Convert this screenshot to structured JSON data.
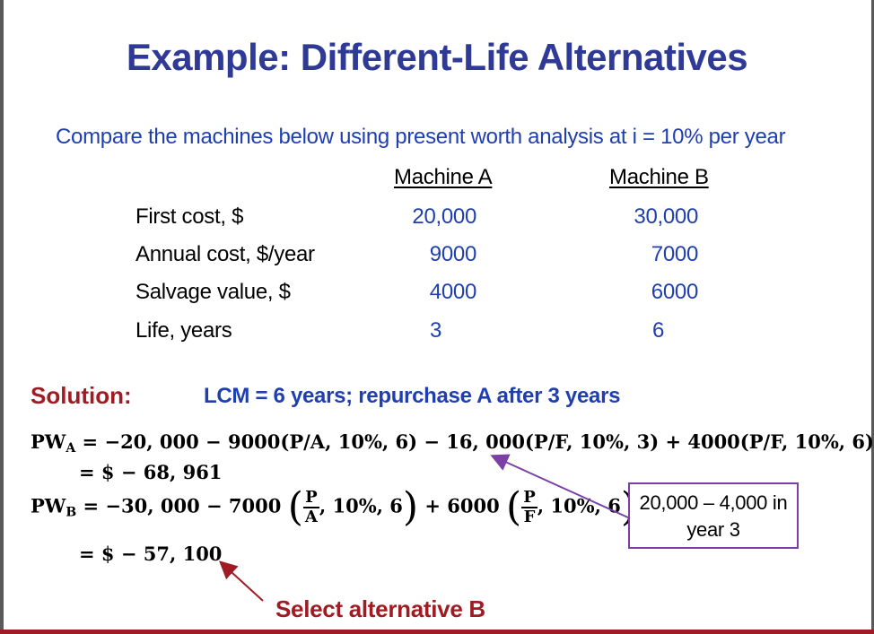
{
  "title": "Example: Different-Life Alternatives",
  "subtitle": "Compare the machines below using present worth analysis at i = 10% per year",
  "table": {
    "columns": [
      "Machine A",
      "Machine B"
    ],
    "rows": [
      {
        "label": "First cost, $",
        "a": "20,000",
        "b": "30,000"
      },
      {
        "label": "Annual cost, $/year",
        "a": "9000",
        "b": "7000"
      },
      {
        "label": "Salvage value, $",
        "a": "4000",
        "b": "6000"
      },
      {
        "label": "Life, years",
        "a": "3",
        "b": "6"
      }
    ]
  },
  "solution": {
    "label": "Solution:",
    "text": "LCM = 6 years; repurchase A after 3 years"
  },
  "equations": {
    "pwa_line1_prefix": "PW",
    "pwa_sub": "A",
    "pwa_line1_rest": " = −20, 000 − 9000(P/A, 10%, 6) − 16, 000(P/F, 10%, 3) + 4000(P/F, 10%, 6)",
    "pwa_line2": "= $ − 68, 961",
    "pwb_prefix": "PW",
    "pwb_sub": "B",
    "pwb_part1": " = −30, 000 − 7000",
    "pwb_frac1_num": "P",
    "pwb_frac1_den": "A",
    "pwb_frac1_rest": ", 10%, 6",
    "pwb_part2": " + 6000",
    "pwb_frac2_num": "P",
    "pwb_frac2_den": "F",
    "pwb_frac2_rest": ", 10%, 6",
    "pwb_line2": "= $ − 57, 100"
  },
  "callout": {
    "line1": "20,000 – 4,000 in",
    "line2": "year 3"
  },
  "conclusion": "Select alternative B",
  "colors": {
    "title": "#2e3a96",
    "blue_text": "#1f3fb0",
    "red_text": "#a01c24",
    "callout_border": "#7b3fa6"
  }
}
